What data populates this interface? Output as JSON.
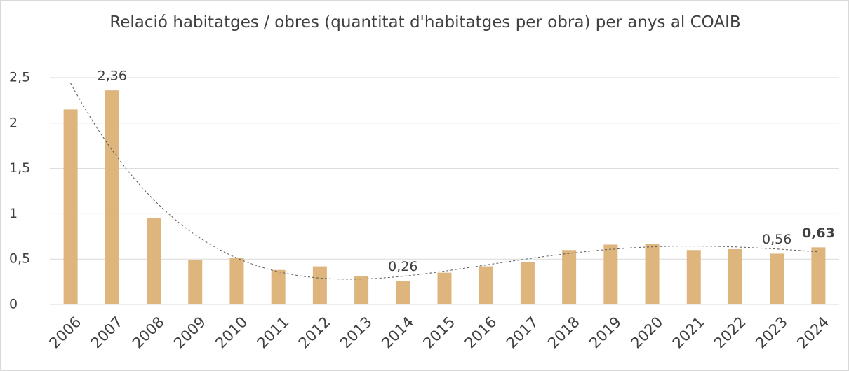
{
  "chart_data": {
    "type": "bar",
    "title": "Relació habitatges / obres (quantitat d'habitatges per obra) per anys al COAIB",
    "categories": [
      "2006",
      "2007",
      "2008",
      "2009",
      "2010",
      "2011",
      "2012",
      "2013",
      "2014",
      "2015",
      "2016",
      "2017",
      "2018",
      "2019",
      "2020",
      "2021",
      "2022",
      "2023",
      "2024"
    ],
    "values": [
      2.15,
      2.36,
      0.95,
      0.49,
      0.51,
      0.38,
      0.42,
      0.31,
      0.26,
      0.35,
      0.42,
      0.47,
      0.6,
      0.66,
      0.67,
      0.6,
      0.61,
      0.56,
      0.63
    ],
    "value_labels": [
      null,
      "2,36",
      null,
      null,
      null,
      null,
      null,
      null,
      "0,26",
      null,
      null,
      null,
      null,
      null,
      null,
      null,
      null,
      "0,56",
      "0,63"
    ],
    "value_label_colors": [
      null,
      "#4472c4",
      null,
      null,
      null,
      null,
      null,
      null,
      "#e00000",
      null,
      null,
      null,
      null,
      null,
      null,
      null,
      null,
      "#a6a6a6",
      "#262626"
    ],
    "color": "#deb57c",
    "ylim": [
      0,
      2.5
    ],
    "yticks": [
      0,
      {
        "value": 0.5,
        "label": "0,5"
      },
      1,
      {
        "value": 1.5,
        "label": "1,5"
      },
      2,
      {
        "value": 2.5,
        "label": "2,5"
      }
    ],
    "grid": true,
    "trendline": true
  }
}
